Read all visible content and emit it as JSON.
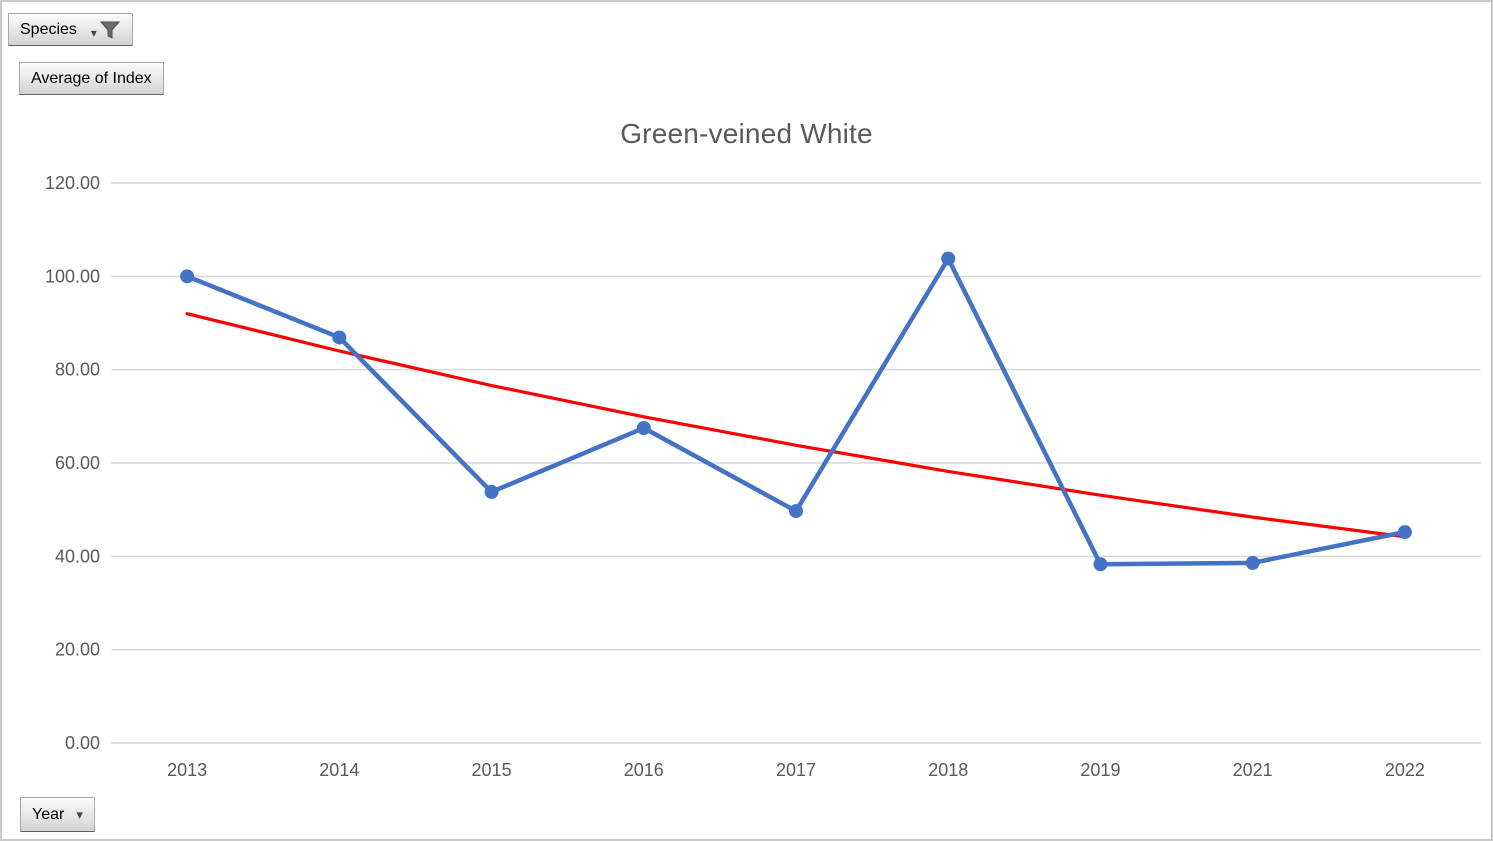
{
  "field_buttons": {
    "species": {
      "label": "Species",
      "icons": [
        "dropdown-arrow",
        "filter-funnel"
      ]
    },
    "value": {
      "label": "Average of Index"
    },
    "axis": {
      "label": "Year",
      "icons": [
        "dropdown-arrow"
      ]
    }
  },
  "chart_data": {
    "type": "line",
    "title": "Green-veined White",
    "categories": [
      "2013",
      "2014",
      "2015",
      "2016",
      "2017",
      "2018",
      "2019",
      "2021",
      "2022"
    ],
    "series": [
      {
        "name": "Average of Index",
        "color": "#4472C4",
        "marker": "circle",
        "values": [
          100.0,
          86.9,
          53.8,
          67.5,
          49.7,
          103.8,
          38.3,
          38.6,
          45.2
        ]
      },
      {
        "name": "Exponential trendline",
        "color": "#FF0000",
        "marker": "none",
        "values": [
          92.0,
          84.0,
          76.6,
          69.9,
          63.8,
          58.2,
          53.1,
          48.4,
          44.2
        ]
      }
    ],
    "xlabel": "Year",
    "ylabel": "Average of Index",
    "ylim": [
      0,
      120
    ],
    "ytick_step": 20,
    "ytick_labels": [
      "0.00",
      "20.00",
      "40.00",
      "60.00",
      "80.00",
      "100.00",
      "120.00"
    ],
    "grid": true,
    "legend": "none",
    "colors": {
      "title_text": "#595959",
      "axis_text": "#595959",
      "gridline": "#d9d9d9"
    }
  }
}
